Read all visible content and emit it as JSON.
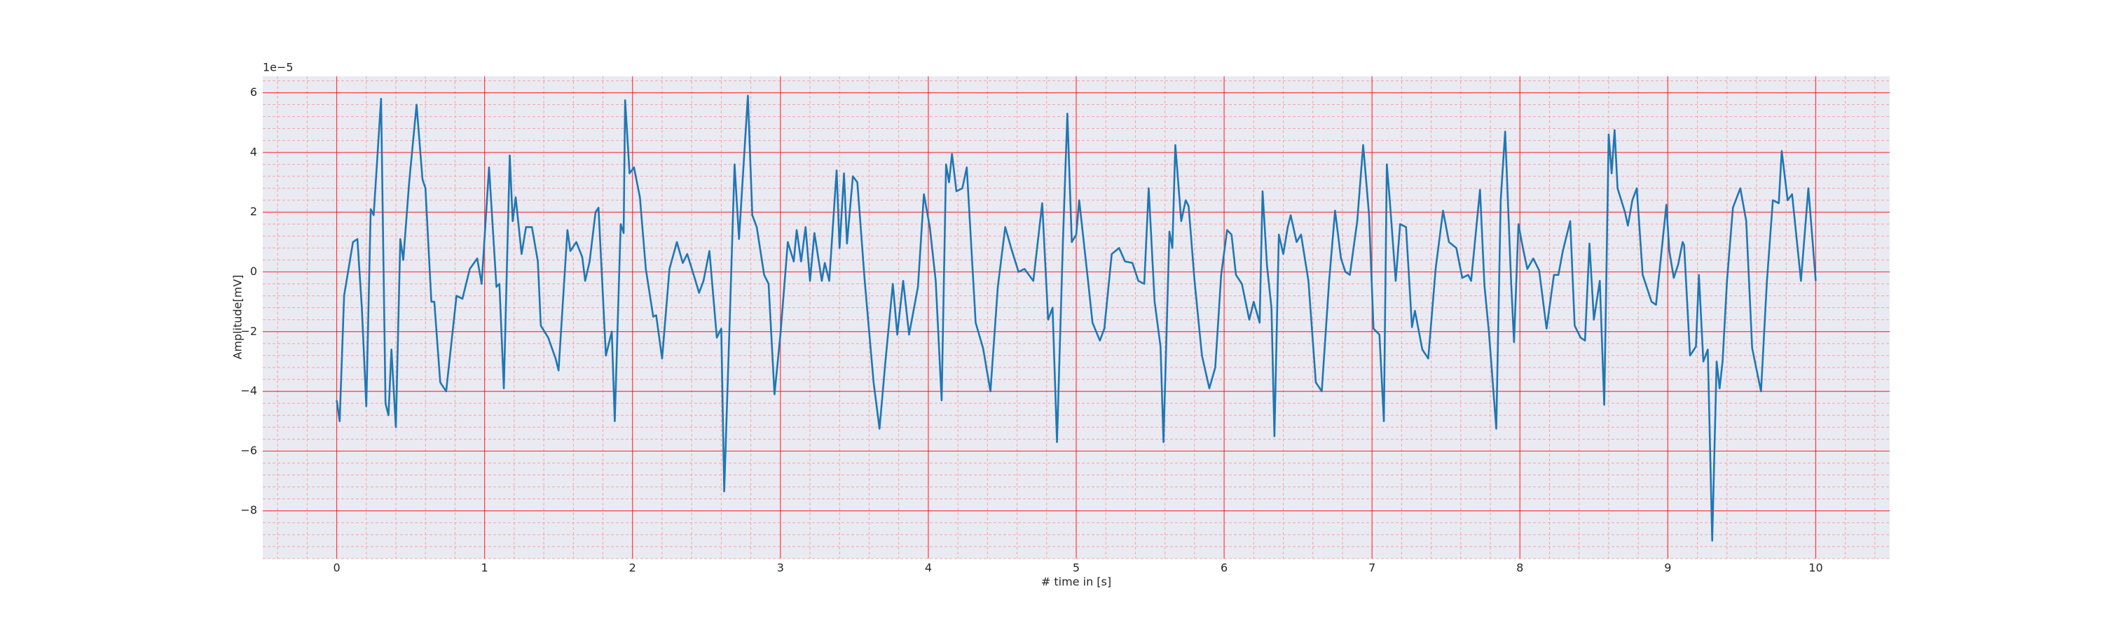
{
  "chart_data": {
    "type": "line",
    "x_label": "# time in [s]",
    "y_label": "Amplitude[mV]",
    "y_offset_label": "1e−5",
    "color": "#1f77b4",
    "background": "#eaeaf2",
    "grid": true,
    "grid_color": "#ff0000",
    "minor_grid_color": "#f4a6a6",
    "xlim": [
      -0.5,
      10.5
    ],
    "ylim": [
      -9.6,
      6.55
    ],
    "xticks": [
      0,
      1,
      2,
      3,
      4,
      5,
      6,
      7,
      8,
      9,
      10
    ],
    "yticks": [
      {
        "value": -8,
        "label": "−8"
      },
      {
        "value": -6,
        "label": "−6"
      },
      {
        "value": -4,
        "label": "−4"
      },
      {
        "value": -2,
        "label": "−2"
      },
      0,
      2,
      4,
      6
    ],
    "xticks_minor": [
      -0.4,
      -0.2,
      0.2,
      0.4,
      0.6,
      0.8,
      1.2,
      1.4,
      1.6,
      1.8,
      2.2,
      2.4,
      2.6,
      2.8,
      3.2,
      3.4,
      3.6,
      3.8,
      4.2,
      4.4,
      4.6,
      4.8,
      5.2,
      5.4,
      5.6,
      5.8,
      6.2,
      6.4,
      6.6,
      6.8,
      7.2,
      7.4,
      7.6,
      7.8,
      8.2,
      8.4,
      8.6,
      8.8,
      9.2,
      9.4,
      9.6,
      9.8,
      10.2,
      10.4
    ],
    "yticks_minor": [
      -9.6,
      -9.2,
      -8.8,
      -8.4,
      -7.6,
      -7.2,
      -6.8,
      -6.4,
      -5.6,
      -5.2,
      -4.8,
      -4.4,
      -3.6,
      -3.2,
      -2.8,
      -2.4,
      -1.6,
      -1.2,
      -0.8,
      -0.4,
      0.4,
      0.8,
      1.2,
      1.6,
      2.4,
      2.8,
      3.2,
      3.6,
      4.4,
      4.8,
      5.2,
      5.6,
      6.4
    ],
    "x": [
      0,
      0.02,
      0.05,
      0.11,
      0.14,
      0.17,
      0.2,
      0.23,
      0.25,
      0.3,
      0.33,
      0.35,
      0.37,
      0.4,
      0.43,
      0.45,
      0.49,
      0.54,
      0.58,
      0.6,
      0.64,
      0.66,
      0.7,
      0.74,
      0.81,
      0.85,
      0.9,
      0.95,
      0.98,
      1.03,
      1.08,
      1.1,
      1.13,
      1.17,
      1.19,
      1.21,
      1.25,
      1.28,
      1.32,
      1.36,
      1.38,
      1.43,
      1.48,
      1.5,
      1.56,
      1.58,
      1.62,
      1.66,
      1.68,
      1.71,
      1.75,
      1.77,
      1.82,
      1.86,
      1.88,
      1.92,
      1.94,
      1.95,
      1.98,
      2.01,
      2.05,
      2.09,
      2.14,
      2.16,
      2.2,
      2.25,
      2.3,
      2.34,
      2.37,
      2.42,
      2.45,
      2.48,
      2.52,
      2.57,
      2.6,
      2.62,
      2.66,
      2.69,
      2.72,
      2.78,
      2.81,
      2.84,
      2.89,
      2.92,
      2.96,
      3.0,
      3.05,
      3.09,
      3.11,
      3.14,
      3.17,
      3.2,
      3.23,
      3.28,
      3.3,
      3.33,
      3.38,
      3.4,
      3.43,
      3.45,
      3.49,
      3.52,
      3.57,
      3.63,
      3.67,
      3.71,
      3.76,
      3.79,
      3.83,
      3.87,
      3.93,
      3.97,
      4.01,
      4.05,
      4.09,
      4.12,
      4.14,
      4.16,
      4.19,
      4.23,
      4.26,
      4.32,
      4.37,
      4.42,
      4.47,
      4.52,
      4.56,
      4.61,
      4.65,
      4.71,
      4.77,
      4.81,
      4.84,
      4.87,
      4.91,
      4.94,
      4.97,
      5.0,
      5.02,
      5.08,
      5.11,
      5.16,
      5.19,
      5.24,
      5.29,
      5.33,
      5.38,
      5.42,
      5.46,
      5.49,
      5.53,
      5.57,
      5.59,
      5.63,
      5.65,
      5.67,
      5.71,
      5.74,
      5.76,
      5.8,
      5.85,
      5.9,
      5.94,
      5.98,
      6.02,
      6.05,
      6.08,
      6.12,
      6.17,
      6.2,
      6.24,
      6.26,
      6.29,
      6.32,
      6.34,
      6.37,
      6.4,
      6.43,
      6.45,
      6.49,
      6.52,
      6.57,
      6.62,
      6.66,
      6.71,
      6.75,
      6.79,
      6.82,
      6.85,
      6.9,
      6.94,
      6.98,
      7.01,
      7.05,
      7.08,
      7.1,
      7.12,
      7.16,
      7.19,
      7.23,
      7.27,
      7.29,
      7.34,
      7.38,
      7.43,
      7.48,
      7.52,
      7.57,
      7.61,
      7.65,
      7.67,
      7.73,
      7.76,
      7.79,
      7.84,
      7.87,
      7.9,
      7.94,
      7.96,
      7.99,
      8.02,
      8.05,
      8.09,
      8.13,
      8.18,
      8.23,
      8.26,
      8.29,
      8.34,
      8.37,
      8.41,
      8.44,
      8.47,
      8.5,
      8.54,
      8.57,
      8.6,
      8.62,
      8.64,
      8.66,
      8.71,
      8.73,
      8.76,
      8.79,
      8.83,
      8.89,
      8.92,
      8.99,
      9.01,
      9.04,
      9.07,
      9.1,
      9.11,
      9.15,
      9.19,
      9.21,
      9.24,
      9.27,
      9.3,
      9.33,
      9.35,
      9.37,
      9.4,
      9.44,
      9.49,
      9.53,
      9.57,
      9.63,
      9.67,
      9.71,
      9.75,
      9.77,
      9.81,
      9.84,
      9.9,
      9.95,
      10.0
    ],
    "values": [
      -4.3,
      -5.0,
      -0.8,
      1.0,
      1.1,
      -1.2,
      -4.5,
      2.1,
      1.9,
      5.8,
      -4.4,
      -4.8,
      -2.6,
      -5.2,
      1.1,
      0.4,
      3.0,
      5.6,
      3.1,
      2.8,
      -1.0,
      -1.0,
      -3.7,
      -4.0,
      -0.8,
      -0.9,
      0.1,
      0.45,
      -0.4,
      3.5,
      -0.5,
      -0.4,
      -3.9,
      3.9,
      1.7,
      2.5,
      0.6,
      1.5,
      1.5,
      0.35,
      -1.8,
      -2.2,
      -2.9,
      -3.3,
      1.4,
      0.7,
      1.0,
      0.5,
      -0.3,
      0.35,
      2.0,
      2.15,
      -2.8,
      -2.0,
      -5.0,
      1.6,
      1.3,
      5.75,
      3.3,
      3.5,
      2.5,
      0.1,
      -1.5,
      -1.45,
      -2.9,
      0.1,
      1.0,
      0.3,
      0.6,
      -0.2,
      -0.7,
      -0.3,
      0.7,
      -2.2,
      -1.9,
      -7.35,
      -1.2,
      3.6,
      1.1,
      5.9,
      1.9,
      1.5,
      -0.1,
      -0.4,
      -4.1,
      -2.1,
      1.0,
      0.35,
      1.4,
      0.35,
      1.5,
      -0.3,
      1.3,
      -0.3,
      0.3,
      -0.3,
      3.4,
      0.8,
      3.3,
      0.95,
      3.2,
      3.0,
      -0.3,
      -3.7,
      -5.25,
      -3.0,
      -0.4,
      -2.1,
      -0.3,
      -2.1,
      -0.5,
      2.6,
      1.5,
      -0.3,
      -4.3,
      3.6,
      3.0,
      3.95,
      2.7,
      2.8,
      3.5,
      -1.7,
      -2.55,
      -4.0,
      -0.5,
      1.5,
      0.8,
      0.0,
      0.1,
      -0.3,
      2.3,
      -1.6,
      -1.2,
      -5.7,
      1.0,
      5.3,
      1.0,
      1.25,
      2.4,
      -0.3,
      -1.7,
      -2.3,
      -1.9,
      0.6,
      0.8,
      0.35,
      0.3,
      -0.3,
      -0.4,
      2.8,
      -1.0,
      -2.5,
      -5.7,
      1.35,
      0.8,
      4.25,
      1.7,
      2.4,
      2.2,
      -0.3,
      -2.8,
      -3.9,
      -3.2,
      -0.1,
      1.4,
      1.25,
      -0.1,
      -0.4,
      -1.6,
      -1.0,
      -1.7,
      2.7,
      0.2,
      -1.2,
      -5.5,
      1.25,
      0.6,
      1.5,
      1.9,
      1.0,
      1.25,
      -0.3,
      -3.7,
      -4.0,
      -0.3,
      2.05,
      0.45,
      0.0,
      -0.1,
      1.7,
      4.25,
      1.9,
      -1.9,
      -2.1,
      -5.0,
      3.6,
      2.4,
      -0.3,
      1.6,
      1.5,
      -1.85,
      -1.3,
      -2.6,
      -2.9,
      0.1,
      2.05,
      1.0,
      0.8,
      -0.2,
      -0.1,
      -0.3,
      2.75,
      -0.45,
      -2.0,
      -5.25,
      2.4,
      4.7,
      -0.3,
      -2.35,
      1.6,
      0.8,
      0.1,
      0.45,
      0.05,
      -1.9,
      -0.1,
      -0.1,
      0.7,
      1.7,
      -1.8,
      -2.2,
      -2.3,
      0.95,
      -1.6,
      -0.3,
      -4.45,
      4.6,
      3.3,
      4.75,
      2.8,
      2.0,
      1.55,
      2.4,
      2.8,
      -0.1,
      -1.0,
      -1.1,
      2.25,
      0.7,
      -0.2,
      0.25,
      1.0,
      0.9,
      -2.8,
      -2.5,
      -0.1,
      -3.0,
      -2.6,
      -9.0,
      -3.0,
      -3.9,
      -3.0,
      -0.3,
      2.15,
      2.8,
      1.7,
      -2.55,
      -4.0,
      -0.3,
      2.4,
      2.3,
      4.05,
      2.4,
      2.6,
      -0.3,
      2.8,
      -0.3
    ]
  }
}
